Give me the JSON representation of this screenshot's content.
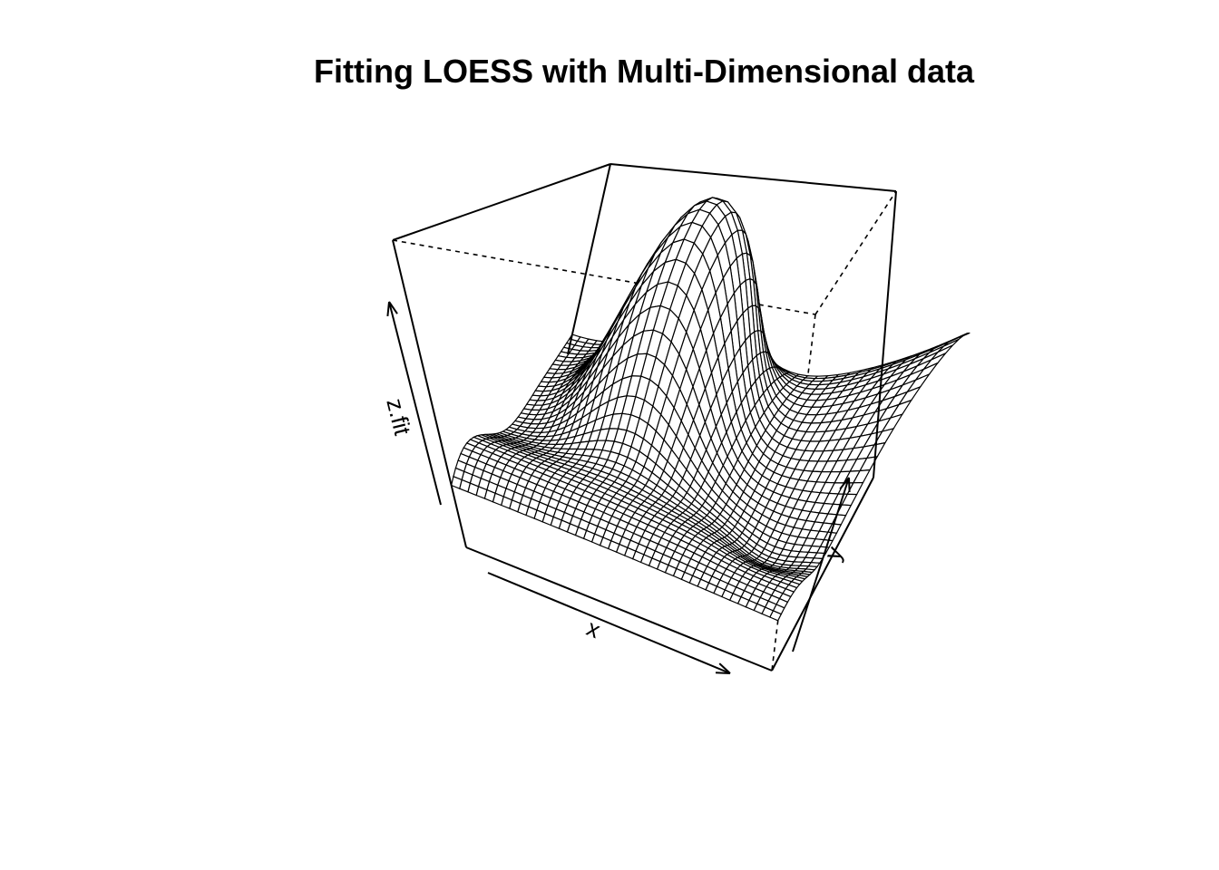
{
  "chart_data": {
    "type": "surface",
    "title": "Fitting LOESS with Multi-Dimensional data",
    "xlabel": "x",
    "ylabel": "y",
    "zlabel": "z.fit",
    "grid_resolution": 40,
    "ticks": "none",
    "colors": {
      "mesh": "#000000",
      "background": "#ffffff",
      "box": "#000000"
    }
  }
}
